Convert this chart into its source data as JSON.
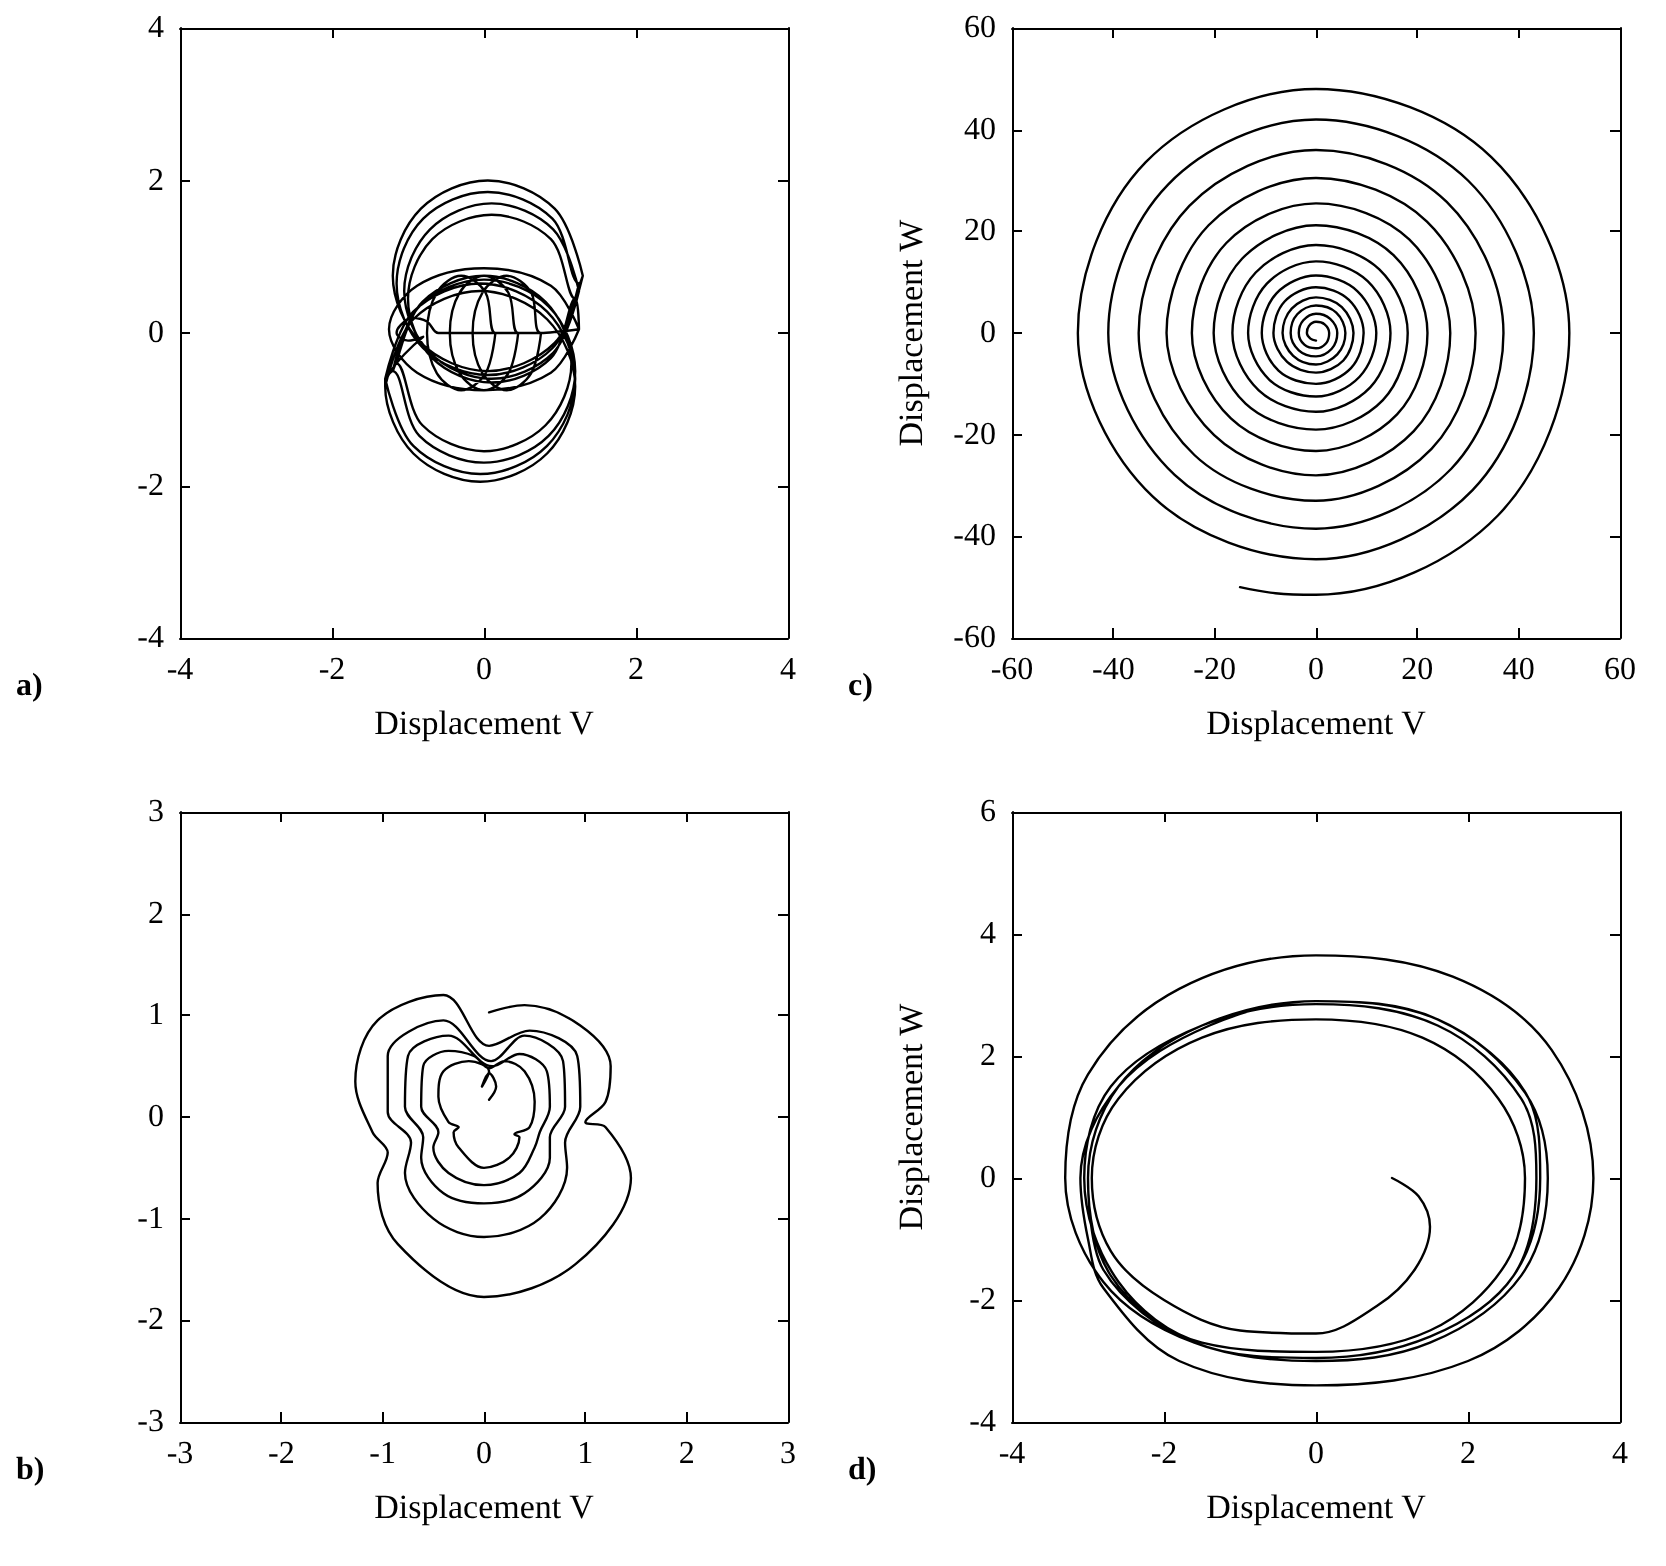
{
  "chart_data": [
    {
      "type": "line",
      "xlabel": "Displacement V",
      "annotations": [
        "a)"
      ],
      "xlim": [
        -4,
        4
      ],
      "ylim": [
        -4,
        4
      ],
      "xticks": [
        -4,
        -2,
        0,
        2,
        4
      ],
      "yticks": [
        -4,
        -2,
        0,
        2,
        4
      ],
      "grid": false,
      "marker": "none",
      "line_style": "solid",
      "series": [
        {
          "color": "#000000",
          "x": [
            1.3,
            0.93,
            0.05,
            -0.83,
            -1.2,
            -0.83,
            0.05,
            0.93,
            1.3,
            1.25,
            0.9,
            0.05,
            -0.8,
            -1.15,
            -0.8,
            0.05,
            0.9,
            1.25,
            1.25,
            0.91,
            0.1,
            -0.71,
            -1.05,
            -0.71,
            0.1,
            0.91,
            1.25,
            1.2,
            0.88,
            0.1,
            -0.68,
            -1.0,
            -0.68,
            0.1,
            0.88,
            1.2,
            1.25,
            0.88,
            0,
            -0.88,
            -1.25,
            -0.88,
            0,
            0.88,
            1.25,
            0.75,
            0.62,
            0.3,
            -0.02,
            -0.15,
            -0.02,
            0.3,
            0.62,
            0.75,
            0.45,
            0.32,
            0,
            -0.32,
            -0.45,
            -0.32,
            0,
            0.32,
            0.45,
            0.15,
            0.02,
            -0.3,
            -0.62,
            -0.75,
            -0.62,
            -0.3,
            0.02,
            0.15,
            -0.6,
            -0.75,
            -0.95,
            -1.1,
            -1.15,
            -1.0,
            -0.8,
            -1.3,
            -0.93,
            -0.05,
            0.83,
            1.2,
            0.83,
            -0.05,
            -0.93,
            -1.3,
            -1.3,
            -0.93,
            -0.05,
            0.83,
            1.2,
            0.83,
            -0.05,
            -0.93,
            -1.3,
            -1.2,
            -0.85,
            0,
            0.85,
            1.2,
            0.85,
            0,
            -0.85,
            -1.2,
            -1.15,
            -0.81,
            0,
            0.81,
            1.15,
            0.81,
            0,
            -0.81,
            -1.15
          ],
          "values": [
            0.75,
            1.63,
            2.0,
            1.63,
            0.75,
            -0.13,
            -0.5,
            -0.13,
            0.75,
            0.65,
            1.5,
            1.85,
            1.5,
            0.65,
            -0.2,
            -0.55,
            -0.2,
            0.65,
            0.55,
            1.36,
            1.7,
            1.36,
            0.55,
            -0.26,
            -0.6,
            -0.26,
            0.55,
            0.45,
            1.23,
            1.55,
            1.23,
            0.45,
            -0.33,
            -0.65,
            -0.33,
            0.45,
            0.05,
            0.62,
            0.85,
            0.62,
            0.05,
            -0.52,
            -0.75,
            -0.52,
            0.05,
            0,
            0.53,
            0.75,
            0.53,
            0,
            -0.53,
            -0.75,
            -0.53,
            0,
            0,
            0.53,
            0.75,
            0.53,
            0,
            -0.53,
            -0.75,
            -0.53,
            0,
            0,
            0.53,
            0.75,
            0.53,
            0,
            -0.53,
            -0.75,
            -0.53,
            0,
            0,
            0.15,
            0.2,
            0.1,
            0,
            -0.1,
            -0.05,
            -0.7,
            -1.58,
            -1.95,
            -1.58,
            -0.7,
            0.18,
            0.55,
            0.18,
            -0.7,
            -0.6,
            -1.48,
            -1.85,
            -1.48,
            -0.6,
            0.28,
            0.65,
            0.28,
            -0.6,
            -0.5,
            -1.35,
            -1.7,
            -1.35,
            -0.5,
            0.35,
            0.7,
            0.35,
            -0.5,
            -0.4,
            -1.21,
            -1.55,
            -1.21,
            -0.4,
            0.41,
            0.75,
            0.41,
            -0.4
          ]
        }
      ]
    },
    {
      "type": "line",
      "xlabel": "Displacement V",
      "ylabel": "Displacement W",
      "annotations": [
        "c)"
      ],
      "xlim": [
        -60,
        60
      ],
      "ylim": [
        -60,
        60
      ],
      "xticks": [
        -60,
        -40,
        -20,
        0,
        20,
        40,
        60
      ],
      "yticks": [
        -60,
        -40,
        -20,
        0,
        20,
        40,
        60
      ],
      "grid": false,
      "marker": "none",
      "line_style": "solid",
      "series": [
        {
          "color": "#000000",
          "x": [
            -15,
            -8,
            0,
            35.9,
            50,
            34.6,
            0,
            -33.6,
            -47,
            -32.2,
            0,
            30.9,
            43,
            30,
            0,
            -29.2,
            -41,
            -27.9,
            0,
            26.7,
            37,
            25.8,
            0,
            -25,
            -35,
            -24,
            0,
            22.8,
            31.5,
            21.9,
            0,
            -21.2,
            -29.5,
            -20.1,
            0,
            19.3,
            26.5,
            18.4,
            0,
            -17.7,
            -24.5,
            -16.8,
            0,
            16,
            22,
            15.3,
            0,
            -14.6,
            -20.2,
            -13.9,
            0,
            13.2,
            18.1,
            12.5,
            0,
            -11.9,
            -16.5,
            -11.3,
            0,
            10.7,
            14.7,
            10.2,
            0,
            -9.7,
            -13.4,
            -9.2,
            0,
            8.6,
            11.9,
            8.2,
            0,
            -7.8,
            -10.7,
            -7.4,
            0,
            6.9,
            9.4,
            6.5,
            0,
            -6.2,
            -8.4,
            -5.7,
            0,
            5.4,
            7.4,
            5.1,
            0,
            -4.8,
            -6.6,
            -4.5,
            0,
            4.2,
            5.8,
            4,
            0,
            -3.7,
            -5,
            -3.4,
            0,
            3.1,
            4.2,
            2.8,
            0,
            -2.5,
            -3.4,
            -2.3,
            0,
            2,
            2.6,
            1.7,
            0,
            -1.4,
            -1.8,
            -1.1,
            0
          ],
          "values": [
            -50,
            -51.2,
            -51.5,
            -35.9,
            0,
            34.6,
            48,
            33.6,
            0,
            -32.2,
            -44.5,
            -30.9,
            0,
            30,
            42,
            29.2,
            0,
            -27.9,
            -38.5,
            -26.7,
            0,
            25.8,
            36,
            25,
            0,
            -24,
            -33,
            -22.8,
            0,
            21.9,
            30.5,
            21.2,
            0,
            -20.1,
            -28,
            -19.3,
            0,
            18.4,
            25.5,
            17.7,
            0,
            -16.8,
            -23.2,
            -16,
            0,
            15.3,
            21.2,
            14.6,
            0,
            -13.9,
            -19,
            -13.2,
            0,
            12.5,
            17.3,
            11.9,
            0,
            -11.3,
            -15.5,
            -10.7,
            0,
            10.2,
            14.1,
            9.7,
            0,
            -9.2,
            -12.5,
            -8.6,
            0,
            8.2,
            11.3,
            7.8,
            0,
            -7.4,
            -10,
            -6.9,
            0,
            6.5,
            9,
            6.2,
            0,
            -5.7,
            -7.8,
            -5.4,
            0,
            5.1,
            7,
            4.8,
            0,
            -4.5,
            -6.2,
            -4.2,
            0,
            4,
            5.4,
            3.7,
            0,
            -3.4,
            -4.6,
            -3.1,
            0,
            2.8,
            3.8,
            2.5,
            0,
            -2.3,
            -3,
            -2,
            0,
            1.7,
            2.2,
            1.4,
            0,
            -1.1,
            -1.5
          ]
        }
      ]
    },
    {
      "type": "line",
      "xlabel": "Displacement V",
      "annotations": [
        "b)"
      ],
      "xlim": [
        -3,
        3
      ],
      "ylim": [
        -3,
        3
      ],
      "xticks": [
        -3,
        -2,
        -1,
        0,
        1,
        2,
        3
      ],
      "yticks": [
        -3,
        -2,
        -1,
        0,
        1,
        2,
        3
      ],
      "grid": false,
      "marker": "none",
      "line_style": "solid",
      "series": [
        {
          "color": "#000000",
          "x": [
            0.05,
            0.12,
            0.05,
            -0.02,
            0.05,
            -0.15,
            -0.4,
            -0.45,
            -0.35,
            -0.25,
            -0.3,
            -0.25,
            0,
            0.25,
            0.35,
            0.3,
            0.45,
            0.5,
            0.4,
            0.2,
            0.05,
            -0.1,
            -0.35,
            -0.6,
            -0.62,
            -0.45,
            -0.5,
            -0.35,
            0,
            0.35,
            0.5,
            0.55,
            0.65,
            0.62,
            0.35,
            0.08,
            -0.35,
            -0.75,
            -0.78,
            -0.6,
            -0.62,
            -0.4,
            0,
            0.4,
            0.65,
            0.65,
            0.8,
            0.78,
            0.4,
            0.07,
            -0.4,
            -0.95,
            -0.95,
            -0.72,
            -0.78,
            -0.5,
            0,
            0.55,
            0.82,
            0.8,
            0.95,
            0.92,
            0.45,
            0.05,
            -0.4,
            -1.05,
            -1.27,
            -1.1,
            -0.95,
            -1.05,
            -0.85,
            0,
            0.9,
            1.45,
            1.2,
            1.0,
            1.2,
            1.25,
            0.95,
            0.4,
            0.05
          ],
          "values": [
            0.17,
            0.3,
            0.43,
            0.3,
            0.45,
            0.55,
            0.45,
            0.2,
            -0.05,
            -0.1,
            -0.15,
            -0.3,
            -0.5,
            -0.4,
            -0.2,
            -0.17,
            -0.1,
            0.15,
            0.45,
            0.55,
            0.48,
            0.6,
            0.65,
            0.5,
            0.1,
            -0.15,
            -0.3,
            -0.55,
            -0.67,
            -0.55,
            -0.3,
            -0.15,
            0.1,
            0.45,
            0.62,
            0.5,
            0.8,
            0.6,
            0.1,
            -0.2,
            -0.4,
            -0.75,
            -0.85,
            -0.75,
            -0.4,
            -0.2,
            0.1,
            0.55,
            0.8,
            0.55,
            0.95,
            0.6,
            0.05,
            -0.25,
            -0.55,
            -1.0,
            -1.18,
            -1.0,
            -0.5,
            -0.25,
            0.1,
            0.6,
            0.85,
            0.7,
            1.2,
            0.95,
            0.35,
            -0.15,
            -0.35,
            -0.65,
            -1.25,
            -1.77,
            -1.45,
            -0.6,
            -0.1,
            -0.05,
            0.15,
            0.5,
            0.9,
            1.1,
            1.03
          ]
        }
      ]
    },
    {
      "type": "line",
      "xlabel": "Displacement V",
      "ylabel": "Displacement W",
      "annotations": [
        "d)"
      ],
      "xlim": [
        -4,
        4
      ],
      "ylim": [
        -4,
        6
      ],
      "xticks": [
        -4,
        -2,
        0,
        2,
        4
      ],
      "yticks": [
        -4,
        -2,
        0,
        2,
        4,
        6
      ],
      "grid": false,
      "marker": "none",
      "line_style": "solid",
      "series": [
        {
          "color": "#000000",
          "x": [
            1,
            1.35,
            1.5,
            1.3,
            0.8,
            0,
            -1,
            -2,
            -2.7,
            -2.95,
            -2.6,
            -1.5,
            0,
            1.4,
            2.4,
            2.75,
            2.5,
            1.5,
            0,
            -1.5,
            -2.6,
            -3.05,
            -2.7,
            -1.5,
            0,
            1.6,
            2.7,
            2.9,
            2.6,
            1.5,
            0,
            -1.6,
            -2.7,
            -3.0,
            -2.6,
            -1.5,
            0,
            1.6,
            2.75,
            3.05,
            2.7,
            1.5,
            0,
            -1.6,
            -2.8,
            -3.3,
            -3.0,
            -1.8,
            0,
            1.8,
            3.1,
            3.65,
            3.2,
            2,
            0,
            -1.8,
            -2.8,
            -3.0,
            -3.1,
            -2.6,
            -1.4,
            0,
            1.6,
            2.8,
            2.95,
            2.6,
            1.5,
            0,
            -1.6,
            -2.8,
            -3.0
          ],
          "values": [
            0,
            -0.3,
            -0.8,
            -1.5,
            -2.1,
            -2.55,
            -2.5,
            -2.0,
            -1.2,
            0,
            1.3,
            2.3,
            2.6,
            2.3,
            1.3,
            0,
            -1.4,
            -2.5,
            -2.85,
            -2.7,
            -1.7,
            0,
            1.5,
            2.5,
            2.85,
            2.5,
            1.3,
            0,
            -1.6,
            -2.6,
            -2.95,
            -2.7,
            -1.6,
            0,
            1.5,
            2.5,
            2.9,
            2.6,
            1.4,
            0,
            -1.6,
            -2.7,
            -3.0,
            -2.7,
            -1.7,
            0,
            1.7,
            3.1,
            3.65,
            3.3,
            2.1,
            0,
            -1.8,
            -3.0,
            -3.4,
            -3.0,
            -1.8,
            -1.0,
            0,
            1.5,
            2.5,
            2.9,
            2.6,
            1.3,
            0,
            -1.6,
            -2.6,
            -2.95,
            -2.7,
            -1.5,
            0
          ]
        }
      ]
    }
  ]
}
